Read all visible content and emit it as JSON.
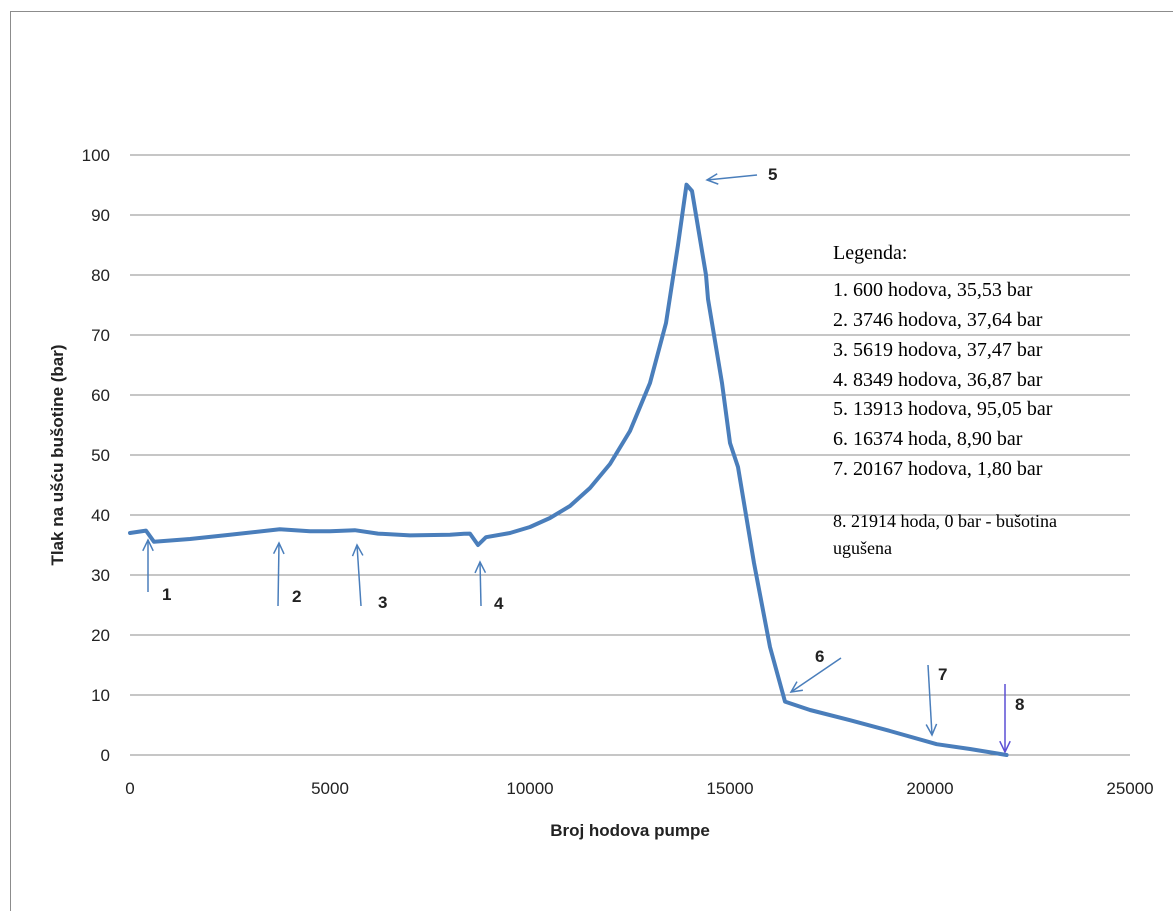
{
  "chart_data": {
    "type": "line",
    "title": "",
    "xlabel": "Broj hodova pumpe",
    "ylabel": "Tlak na ušću bušotine (bar)",
    "xlim": [
      0,
      25000
    ],
    "ylim": [
      0,
      100
    ],
    "x_ticks": [
      "0",
      "5000",
      "10000",
      "15000",
      "20000",
      "25000"
    ],
    "y_ticks": [
      "0",
      "10",
      "20",
      "30",
      "40",
      "50",
      "60",
      "70",
      "80",
      "90",
      "100"
    ],
    "grid": "horizontal",
    "series": [
      {
        "color": "#4a7ebb",
        "points": [
          [
            0,
            37.0
          ],
          [
            400,
            37.4
          ],
          [
            600,
            35.53
          ],
          [
            1500,
            36.0
          ],
          [
            2500,
            36.7
          ],
          [
            3746,
            37.64
          ],
          [
            4500,
            37.3
          ],
          [
            5000,
            37.3
          ],
          [
            5619,
            37.47
          ],
          [
            6200,
            36.9
          ],
          [
            7000,
            36.6
          ],
          [
            8000,
            36.7
          ],
          [
            8349,
            36.87
          ],
          [
            8500,
            36.9
          ],
          [
            8700,
            35.0
          ],
          [
            8900,
            36.3
          ],
          [
            9500,
            37.0
          ],
          [
            10000,
            38.0
          ],
          [
            10500,
            39.5
          ],
          [
            11000,
            41.5
          ],
          [
            11500,
            44.5
          ],
          [
            12000,
            48.5
          ],
          [
            12500,
            54.0
          ],
          [
            13000,
            62.0
          ],
          [
            13400,
            72.0
          ],
          [
            13700,
            85.0
          ],
          [
            13913,
            95.05
          ],
          [
            14050,
            94.0
          ],
          [
            14250,
            86.0
          ],
          [
            14400,
            80.0
          ],
          [
            14450,
            76.0
          ],
          [
            14800,
            62.0
          ],
          [
            15000,
            52.0
          ],
          [
            15200,
            48.0
          ],
          [
            15600,
            32.0
          ],
          [
            16000,
            18.0
          ],
          [
            16374,
            8.9
          ],
          [
            17000,
            7.5
          ],
          [
            18000,
            5.8
          ],
          [
            19000,
            4.0
          ],
          [
            20167,
            1.8
          ],
          [
            21000,
            1.0
          ],
          [
            21914,
            0.0
          ]
        ]
      }
    ],
    "markers": [
      {
        "label": "1",
        "x": 600,
        "y": 35.53
      },
      {
        "label": "2",
        "x": 3746,
        "y": 37.64
      },
      {
        "label": "3",
        "x": 5619,
        "y": 37.47
      },
      {
        "label": "4",
        "x": 8349,
        "y": 36.87
      },
      {
        "label": "5",
        "x": 13913,
        "y": 95.05
      },
      {
        "label": "6",
        "x": 16374,
        "y": 8.9
      },
      {
        "label": "7",
        "x": 20167,
        "y": 1.8
      },
      {
        "label": "8",
        "x": 21914,
        "y": 0
      }
    ],
    "legend_placement": "right",
    "legend_title": "Legenda:",
    "legend_entries": [
      "1. 600 hodova, 35,53 bar",
      "2. 3746 hodova, 37,64 bar",
      "3. 5619 hodova, 37,47 bar",
      "4. 8349 hodova, 36,87 bar",
      "5. 13913 hodova, 95,05 bar",
      "6. 16374 hoda, 8,90 bar",
      "7. 20167 hodova, 1,80 bar",
      "8. 21914 hoda, 0 bar - bušotina",
      "ugušena"
    ]
  }
}
